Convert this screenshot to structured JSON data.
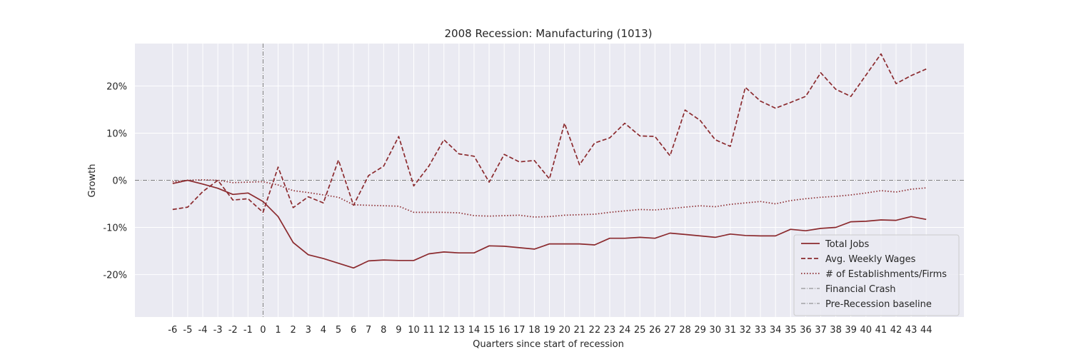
{
  "chart_data": {
    "type": "line",
    "title": "2008 Recession: Manufacturing (1013)",
    "xlabel": "Quarters since start of recession",
    "ylabel": "Growth",
    "x": [
      -6,
      -5,
      -4,
      -3,
      -2,
      -1,
      0,
      1,
      2,
      3,
      4,
      5,
      6,
      7,
      8,
      9,
      10,
      11,
      12,
      13,
      14,
      15,
      16,
      17,
      18,
      19,
      20,
      21,
      22,
      23,
      24,
      25,
      26,
      27,
      28,
      29,
      30,
      31,
      32,
      33,
      34,
      35,
      36,
      37,
      38,
      39,
      40,
      41,
      42,
      43,
      44
    ],
    "x_tick_labels": [
      "-6",
      "-5",
      "-4",
      "-3",
      "-2",
      "-1",
      "0",
      "1",
      "2",
      "3",
      "4",
      "5",
      "6",
      "7",
      "8",
      "9",
      "10",
      "11",
      "12",
      "13",
      "14",
      "15",
      "16",
      "17",
      "18",
      "19",
      "20",
      "21",
      "22",
      "23",
      "24",
      "25",
      "26",
      "27",
      "28",
      "29",
      "30",
      "31",
      "32",
      "33",
      "34",
      "35",
      "36",
      "37",
      "38",
      "39",
      "40",
      "41",
      "42",
      "43",
      "44"
    ],
    "y_ticks": [
      -20,
      -10,
      0,
      10,
      20
    ],
    "y_tick_labels": [
      "-20%",
      "-10%",
      "0%",
      "10%",
      "20%"
    ],
    "ylim": [
      -29,
      29
    ],
    "xlim": [
      -8.5,
      46.5
    ],
    "grid": true,
    "legend_position": "lower-right",
    "color": "#8b2a2e",
    "ref_color": "#808080",
    "series": [
      {
        "name": "Total Jobs",
        "style": "solid",
        "values": [
          -0.7,
          0,
          -0.8,
          -1.7,
          -3.0,
          -2.7,
          -4.5,
          -7.7,
          -13.2,
          -15.8,
          -16.6,
          -17.6,
          -18.6,
          -17.1,
          -16.9,
          -17.0,
          -17.0,
          -15.6,
          -15.2,
          -15.4,
          -15.4,
          -13.9,
          -14.0,
          -14.3,
          -14.6,
          -13.5,
          -13.5,
          -13.5,
          -13.7,
          -12.3,
          -12.3,
          -12.1,
          -12.3,
          -11.2,
          -11.5,
          -11.8,
          -12.1,
          -11.4,
          -11.7,
          -11.8,
          -11.8,
          -10.4,
          -10.7,
          -10.2,
          -10.0,
          -8.8,
          -8.7,
          -8.4,
          -8.5,
          -7.7,
          -8.3
        ]
      },
      {
        "name": "Avg. Weekly Wages",
        "style": "dashed",
        "values": [
          -6.2,
          -5.7,
          -2.4,
          0,
          -4.2,
          -3.9,
          -6.8,
          2.8,
          -5.8,
          -3.5,
          -4.8,
          4.3,
          -5.3,
          1.0,
          3.0,
          9.3,
          -1.2,
          3.0,
          8.6,
          5.6,
          5.1,
          -0.4,
          5.5,
          3.9,
          4.2,
          0.3,
          12.1,
          3.3,
          7.9,
          9.0,
          12.1,
          9.4,
          9.3,
          5.2,
          14.9,
          12.7,
          8.6,
          7.2,
          19.7,
          16.8,
          15.3,
          16.5,
          17.8,
          22.8,
          19.3,
          17.8,
          22.3,
          26.8,
          20.5,
          22.2,
          23.6
        ]
      },
      {
        "name": "# of Establishments/Firms",
        "style": "dotted",
        "values": [
          -0.3,
          0,
          0.1,
          0,
          -0.5,
          -0.4,
          -0.3,
          -1.0,
          -2.2,
          -2.6,
          -3.1,
          -3.6,
          -5.2,
          -5.3,
          -5.4,
          -5.5,
          -6.8,
          -6.8,
          -6.8,
          -6.9,
          -7.5,
          -7.6,
          -7.5,
          -7.4,
          -7.8,
          -7.7,
          -7.4,
          -7.3,
          -7.2,
          -6.8,
          -6.5,
          -6.2,
          -6.3,
          -6.0,
          -5.7,
          -5.4,
          -5.6,
          -5.1,
          -4.8,
          -4.5,
          -5.0,
          -4.3,
          -3.9,
          -3.6,
          -3.4,
          -3.1,
          -2.7,
          -2.2,
          -2.5,
          -1.9,
          -1.6
        ]
      }
    ],
    "reference_lines": [
      {
        "name": "Financial Crash",
        "orientation": "vertical",
        "value": 0
      },
      {
        "name": "Pre-Recession baseline",
        "orientation": "horizontal",
        "value": 0
      }
    ]
  }
}
